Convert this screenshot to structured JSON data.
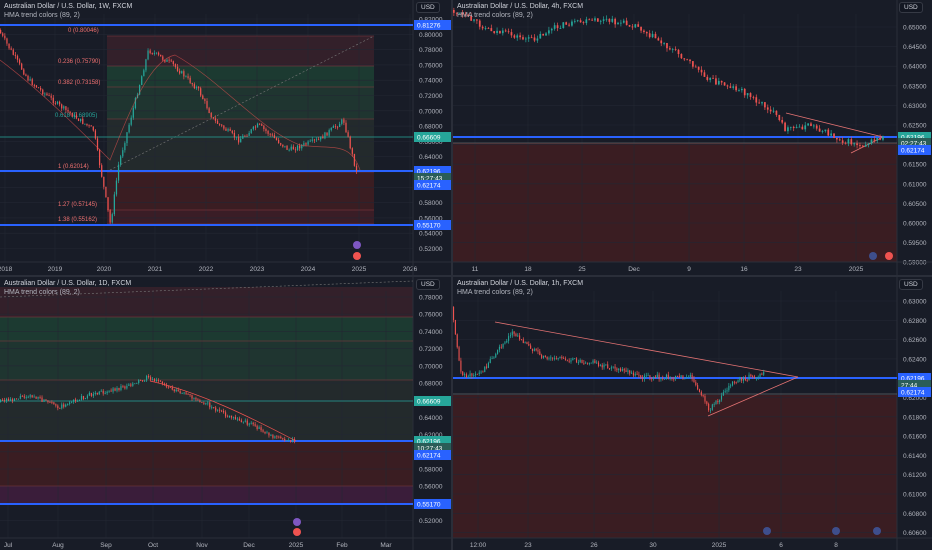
{
  "colors": {
    "bg": "#181c27",
    "grid": "#232733",
    "up": "#26a69a",
    "down": "#ef5350",
    "blue_line": "#2962ff",
    "axis_text": "#b2b5be",
    "red_zone": "#3a1d22",
    "green_zone": "#1c3a31"
  },
  "panels": [
    {
      "id": "tl",
      "title": "Australian Dollar / U.S. Dollar, 1W, FXCM",
      "indicator": "HMA trend colors (89, 2)",
      "currency": "USD",
      "y_ticks": [
        "0.82000",
        "0.80000",
        "0.78000",
        "0.76000",
        "0.74000",
        "0.72000",
        "0.70000",
        "0.68000",
        "0.66000",
        "0.64000",
        "0.62000",
        "0.60000",
        "0.58000",
        "0.56000",
        "0.54000",
        "0.52000"
      ],
      "x_ticks": [
        "2018",
        "2019",
        "2020",
        "2021",
        "2022",
        "2023",
        "2024",
        "2025",
        "2026"
      ],
      "price_tags": [
        {
          "text": "0.81276",
          "kind": "blue"
        },
        {
          "text": "0.66609",
          "kind": "green"
        },
        {
          "text": "0.62196",
          "kind": "blue"
        },
        {
          "text": "15:27:43",
          "kind": "sub"
        },
        {
          "text": "0.62174",
          "kind": "blue"
        },
        {
          "text": "0.55170",
          "kind": "blue"
        }
      ],
      "fib_labels": [
        {
          "text": "0 (0.80046)"
        },
        {
          "text": "0.236 (0.75790)"
        },
        {
          "text": "0.382 (0.73158)"
        },
        {
          "text": "0.618 (0.68905)"
        },
        {
          "text": "1 (0.62014)"
        },
        {
          "text": "1.27 (0.57145)"
        },
        {
          "text": "1.38 (0.55162)"
        }
      ]
    },
    {
      "id": "tr",
      "title": "Australian Dollar / U.S. Dollar, 4h, FXCM",
      "indicator": "HMA trend colors (89, 2)",
      "currency": "USD",
      "y_ticks": [
        "0.65000",
        "0.64500",
        "0.64000",
        "0.63500",
        "0.63000",
        "0.62500",
        "0.62000",
        "0.61500",
        "0.61000",
        "0.60500",
        "0.60000",
        "0.59500",
        "0.59000"
      ],
      "x_ticks": [
        "11",
        "18",
        "25",
        "Dec",
        "9",
        "16",
        "23",
        "2025"
      ],
      "price_tags": [
        {
          "text": "0.62196",
          "kind": "green"
        },
        {
          "text": "02:27:43",
          "kind": "sub"
        },
        {
          "text": "0.62174",
          "kind": "blue"
        }
      ]
    },
    {
      "id": "bl",
      "title": "Australian Dollar / U.S. Dollar, 1D, FXCM",
      "indicator": "HMA trend colors (89, 2)",
      "currency": "USD",
      "y_ticks": [
        "0.78000",
        "0.76000",
        "0.74000",
        "0.72000",
        "0.70000",
        "0.68000",
        "0.66000",
        "0.64000",
        "0.62000",
        "0.60000",
        "0.58000",
        "0.56000",
        "0.54000",
        "0.52000"
      ],
      "x_ticks": [
        "Jul",
        "Aug",
        "Sep",
        "Oct",
        "Nov",
        "Dec",
        "2025",
        "Feb",
        "Mar"
      ],
      "price_tags": [
        {
          "text": "0.66609",
          "kind": "green"
        },
        {
          "text": "0.62196",
          "kind": "green"
        },
        {
          "text": "10:27:43",
          "kind": "sub"
        },
        {
          "text": "0.62174",
          "kind": "blue"
        },
        {
          "text": "0.55170",
          "kind": "blue"
        }
      ]
    },
    {
      "id": "br",
      "title": "Australian Dollar / U.S. Dollar, 1h, FXCM",
      "indicator": "HMA trend colors (89, 2)",
      "currency": "USD",
      "y_ticks": [
        "0.63000",
        "0.62800",
        "0.62600",
        "0.62400",
        "0.62200",
        "0.62000",
        "0.61800",
        "0.61600",
        "0.61400",
        "0.61200",
        "0.61000",
        "0.60800",
        "0.60600"
      ],
      "x_ticks": [
        "12:00",
        "23",
        "26",
        "30",
        "2025",
        "6",
        "8"
      ],
      "price_tags": [
        {
          "text": "0.62196",
          "kind": "blue"
        },
        {
          "text": "27:44",
          "kind": "sub"
        },
        {
          "text": "0.62174",
          "kind": "blue"
        }
      ]
    }
  ]
}
